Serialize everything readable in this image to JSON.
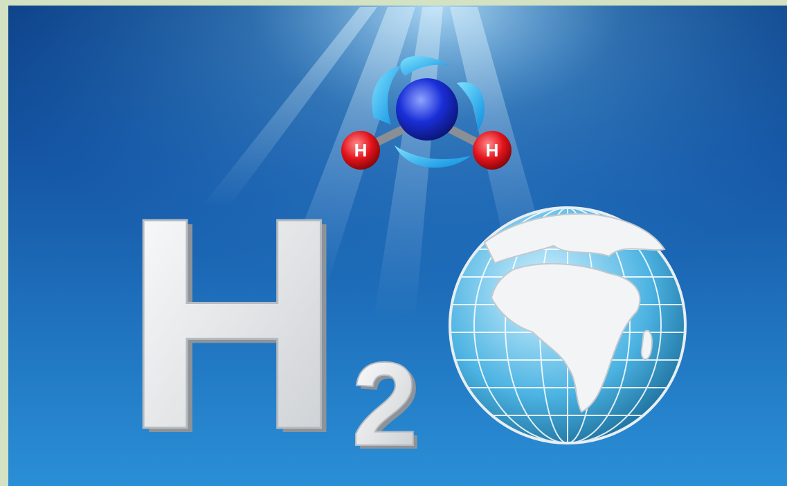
{
  "molecule": {
    "atoms": [
      {
        "label": "H"
      },
      {
        "label": "H"
      }
    ]
  },
  "formula": {
    "element": "H",
    "subscript": "2"
  }
}
